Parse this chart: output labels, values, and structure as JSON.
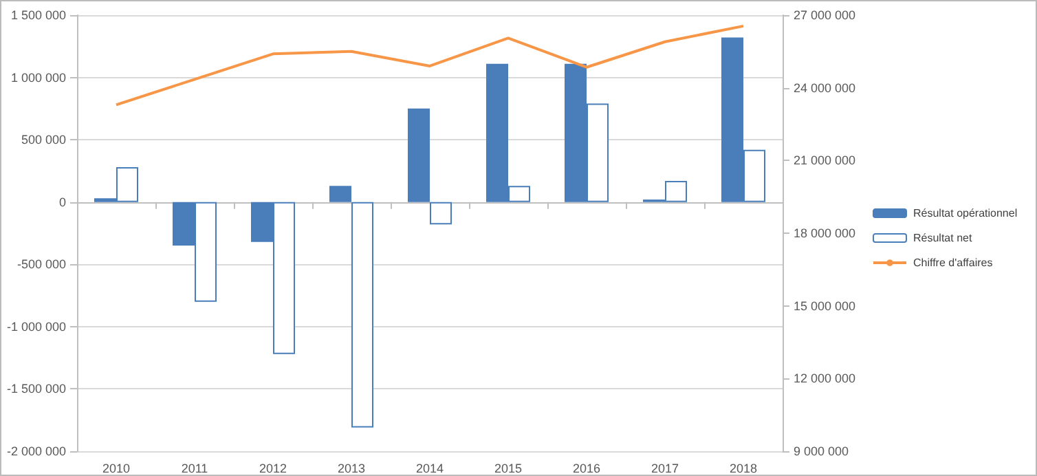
{
  "chart_data": {
    "type": "bar",
    "categories": [
      "2010",
      "2011",
      "2012",
      "2013",
      "2014",
      "2015",
      "2016",
      "2017",
      "2018"
    ],
    "series": [
      {
        "name": "Résultat opérationnel",
        "color": "#4a7ebb",
        "values": [
          30000,
          -350000,
          -320000,
          130000,
          750000,
          1110000,
          1110000,
          20000,
          1320000
        ]
      },
      {
        "name": "Résultat net",
        "color": "#ffffff",
        "values": [
          280000,
          -800000,
          -1220000,
          -1810000,
          -180000,
          130000,
          790000,
          170000,
          420000
        ]
      },
      {
        "name": "Chiffre d'affaires",
        "type": "line",
        "axis": "y2",
        "color": "#f79646",
        "values": [
          23300000,
          24350000,
          25400000,
          25500000,
          24900000,
          26050000,
          24850000,
          25900000,
          26550000
        ]
      }
    ],
    "ylim": [
      -2000000,
      1500000
    ],
    "yticks": [
      -2000000,
      -1500000,
      -1000000,
      -500000,
      0,
      500000,
      1000000,
      1500000
    ],
    "y2lim": [
      9000000,
      27000000
    ],
    "y2ticks": [
      9000000,
      12000000,
      15000000,
      18000000,
      21000000,
      24000000,
      27000000
    ],
    "grid": "y",
    "legend": "right",
    "marker": "none"
  }
}
